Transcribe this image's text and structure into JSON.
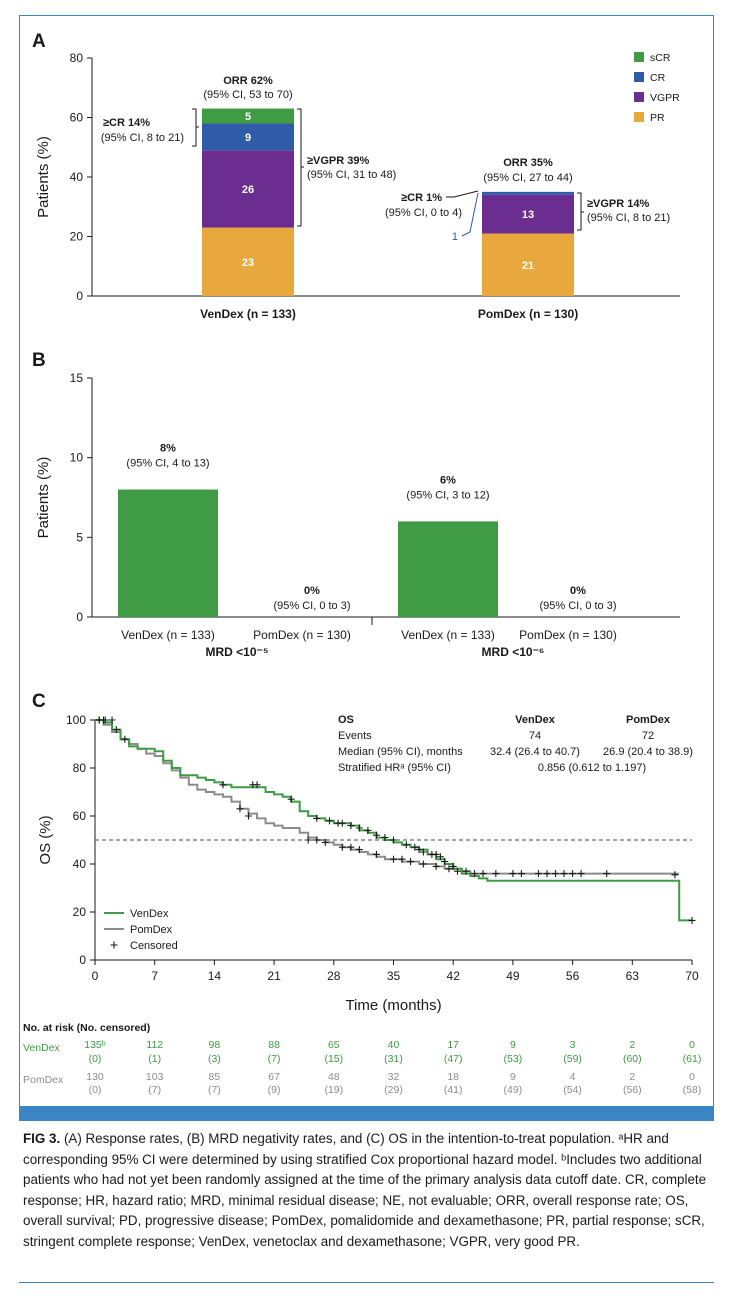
{
  "figure": {
    "panel_labels": [
      "A",
      "B",
      "C"
    ],
    "caption": {
      "label": "FIG 3.",
      "text": " (A) Response rates, (B) MRD negativity rates, and (C) OS in the intention-to-treat population. ᵃHR and corresponding 95% CI were determined by using stratified Cox proportional hazard model. ᵇIncludes two additional patients who had not yet been randomly assigned at the time of the primary analysis data cutoff date. CR, complete response; HR, hazard ratio; MRD, minimal residual disease; NE, not evaluable; ORR, overall response rate; OS, overall survival; PD, progressive disease; PomDex, pomalidomide and dexamethasone; PR, partial response; sCR, stringent complete response; VenDex, venetoclax and dexamethasone; VGPR, very good PR."
    }
  },
  "colors": {
    "sCR": "#3f9b44",
    "CR": "#2e5ca8",
    "VGPR": "#6b2d8f",
    "PR": "#e8a83e",
    "mrd_bar": "#3f9b44",
    "vendex_line": "#3f9b44",
    "pomdex_line": "#8c8c8c",
    "frame": "#3a86c4"
  },
  "chart_data": [
    {
      "panel": "A",
      "type": "bar",
      "stacked": true,
      "ylabel": "Patients (%)",
      "ylim": [
        0,
        80
      ],
      "yticks": [
        0,
        20,
        40,
        60,
        80
      ],
      "categories": [
        "VenDex (n = 133)",
        "PomDex (n = 130)"
      ],
      "series": [
        {
          "name": "PR",
          "values": [
            23,
            21
          ]
        },
        {
          "name": "VGPR",
          "values": [
            26,
            13
          ]
        },
        {
          "name": "CR",
          "values": [
            9,
            1
          ]
        },
        {
          "name": "sCR",
          "values": [
            5,
            0
          ]
        }
      ],
      "legend": [
        "sCR",
        "CR",
        "VGPR",
        "PR"
      ],
      "legend_position": "top-right",
      "annotations": [
        {
          "bar": 0,
          "title": "ORR 62%",
          "sub": "(95% CI, 53 to 70)"
        },
        {
          "bar": 0,
          "title": "≥CR 14%",
          "sub": "(95% CI, 8 to 21)",
          "side": "left"
        },
        {
          "bar": 0,
          "title": "≥VGPR 39%",
          "sub": "(95% CI, 31 to 48)",
          "side": "right"
        },
        {
          "bar": 1,
          "title": "ORR 35%",
          "sub": "(95% CI, 27 to 44)"
        },
        {
          "bar": 1,
          "title": "≥CR 1%",
          "sub": "(95% CI, 0 to 4)",
          "side": "left"
        },
        {
          "bar": 1,
          "title": "≥VGPR 14%",
          "sub": "(95% CI, 8 to 21)",
          "side": "right"
        },
        {
          "bar": 1,
          "title": "1",
          "side": "left-small"
        }
      ]
    },
    {
      "panel": "B",
      "type": "bar",
      "ylabel": "Patients (%)",
      "ylim": [
        0,
        15
      ],
      "yticks": [
        0,
        5,
        10,
        15
      ],
      "groups": [
        {
          "label": "MRD <10⁻⁵",
          "bars": [
            {
              "name": "VenDex (n = 133)",
              "value": 8,
              "title": "8%",
              "sub": "(95% CI, 4 to 13)"
            },
            {
              "name": "PomDex (n = 130)",
              "value": 0,
              "title": "0%",
              "sub": "(95% CI, 0 to 3)"
            }
          ]
        },
        {
          "label": "MRD <10⁻⁶",
          "bars": [
            {
              "name": "VenDex (n = 133)",
              "value": 6,
              "title": "6%",
              "sub": "(95% CI, 3 to 12)"
            },
            {
              "name": "PomDex (n = 130)",
              "value": 0,
              "title": "0%",
              "sub": "(95% CI, 0 to 3)"
            }
          ]
        }
      ]
    },
    {
      "panel": "C",
      "type": "line",
      "step": true,
      "xlabel": "Time (months)",
      "ylabel": "OS (%)",
      "xlim": [
        0,
        70
      ],
      "ylim": [
        0,
        100
      ],
      "xticks": [
        0,
        7,
        14,
        21,
        28,
        35,
        42,
        49,
        56,
        63,
        70
      ],
      "yticks": [
        0,
        20,
        40,
        60,
        80,
        100
      ],
      "reference_line": 50,
      "legend": [
        "VenDex",
        "PomDex",
        "Censored"
      ],
      "legend_position": "bottom-left",
      "series": [
        {
          "name": "VenDex",
          "x": [
            0,
            1,
            2,
            3,
            4,
            5,
            6,
            7,
            8,
            9,
            10,
            11,
            12,
            13,
            14,
            15,
            16,
            17,
            18,
            19,
            20,
            21,
            22,
            23,
            24,
            25,
            26,
            27,
            28,
            29,
            30,
            31,
            32,
            33,
            34,
            35,
            36,
            37,
            38,
            39,
            40,
            41,
            42,
            43,
            44,
            45,
            46,
            47,
            48,
            49,
            50,
            55,
            60,
            65,
            68,
            68.5,
            70
          ],
          "y": [
            100,
            99,
            96,
            92,
            89,
            88,
            88,
            87,
            83,
            80,
            77,
            77,
            76,
            75,
            74,
            73,
            72,
            72,
            72,
            72,
            70,
            69,
            68,
            66,
            62,
            60,
            59,
            58,
            57,
            57,
            56,
            54,
            53,
            51,
            50,
            49,
            48,
            47,
            46,
            44,
            42,
            40,
            38,
            36,
            35,
            34,
            33,
            33,
            33,
            33,
            33,
            33,
            33,
            33,
            33,
            16.5,
            16.5
          ],
          "censored_x": [
            0.5,
            1,
            2.5,
            3.5,
            15,
            18.5,
            19,
            23,
            26,
            27.5,
            28.5,
            29,
            30,
            31,
            32,
            33,
            34,
            35,
            36.5,
            37.5,
            38,
            38.5,
            39.5,
            40,
            40.5,
            41,
            42,
            68,
            70
          ],
          "censored_y": [
            100,
            100,
            96,
            92,
            73,
            73,
            73,
            67,
            59,
            58,
            57,
            57,
            56,
            55,
            54,
            52,
            51,
            50,
            48,
            47,
            46,
            45,
            44,
            44,
            43,
            41,
            39,
            35.5,
            16.5
          ]
        },
        {
          "name": "PomDex",
          "x": [
            0,
            1,
            2,
            3,
            4,
            5,
            6,
            7,
            8,
            9,
            10,
            11,
            12,
            13,
            14,
            15,
            16,
            17,
            18,
            19,
            20,
            21,
            22,
            23,
            24,
            25,
            26,
            27,
            28,
            29,
            30,
            31,
            32,
            33,
            34,
            35,
            36,
            37,
            38,
            39,
            40,
            41,
            42,
            43,
            44,
            45,
            46,
            48,
            50,
            55,
            60,
            65,
            68,
            68.5
          ],
          "y": [
            100,
            98,
            95,
            92,
            90,
            88,
            86,
            85,
            82,
            79,
            76,
            73,
            71,
            70,
            69,
            68,
            66,
            63,
            61,
            59,
            57,
            56,
            55,
            55,
            53,
            51,
            50,
            49,
            48,
            47,
            46,
            45,
            44,
            43,
            42,
            42,
            41,
            41,
            40,
            40,
            39,
            38,
            38,
            37,
            36,
            36,
            36,
            36,
            36,
            36,
            36,
            36,
            36,
            36
          ],
          "censored_x": [
            0.5,
            1.2,
            2,
            17,
            18,
            25,
            26,
            27,
            29,
            30,
            31,
            33,
            35,
            36,
            37,
            38.5,
            40,
            41.5,
            42.5,
            43.5,
            44.5,
            45.5,
            47,
            49,
            50,
            52,
            53,
            54,
            55,
            56,
            57,
            60
          ],
          "censored_y": [
            100,
            100,
            100,
            63,
            60,
            50,
            50,
            49,
            47,
            47,
            46,
            44,
            42,
            42,
            41,
            40,
            39,
            38,
            37,
            37,
            36,
            36,
            36,
            36,
            36,
            36,
            36,
            36,
            36,
            36,
            36,
            36
          ]
        }
      ],
      "stats_table": {
        "title": "OS",
        "columns": [
          "VenDex",
          "PomDex"
        ],
        "rows": [
          {
            "label": "Events",
            "values": [
              "74",
              "72"
            ]
          },
          {
            "label": "Median (95% CI), months",
            "values": [
              "32.4 (26.4 to 40.7)",
              "26.9 (20.4 to 38.9)"
            ]
          },
          {
            "label": "Stratified HRᵃ (95% CI)",
            "span": "0.856 (0.612 to 1.197)"
          }
        ]
      },
      "at_risk": {
        "title": "No. at risk (No. censored)",
        "rows": [
          {
            "name": "VenDex",
            "counts": [
              "135ᵇ",
              "112",
              "98",
              "88",
              "65",
              "40",
              "17",
              "9",
              "3",
              "2",
              "0"
            ],
            "censored": [
              "(0)",
              "(1)",
              "(3)",
              "(7)",
              "(15)",
              "(31)",
              "(47)",
              "(53)",
              "(59)",
              "(60)",
              "(61)"
            ]
          },
          {
            "name": "PomDex",
            "counts": [
              "130",
              "103",
              "85",
              "67",
              "48",
              "32",
              "18",
              "9",
              "4",
              "2",
              "0"
            ],
            "censored": [
              "(0)",
              "(7)",
              "(7)",
              "(9)",
              "(19)",
              "(29)",
              "(41)",
              "(49)",
              "(54)",
              "(56)",
              "(58)"
            ]
          }
        ]
      }
    }
  ]
}
